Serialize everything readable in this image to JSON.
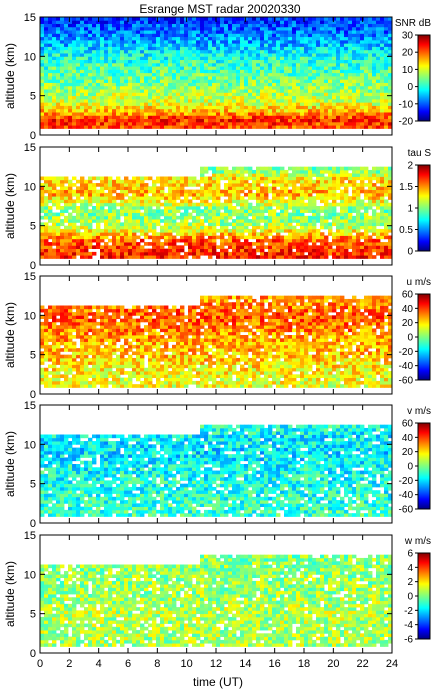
{
  "title": "Esrange MST radar 20020330",
  "xlabel": "time (UT)",
  "chart_data": [
    {
      "type": "heatmap",
      "ylabel": "altitude (km)",
      "x_range": [
        0,
        24
      ],
      "y_range": [
        0,
        15
      ],
      "x_ticks": [
        0,
        2,
        4,
        6,
        8,
        10,
        12,
        14,
        16,
        18,
        20,
        22,
        24
      ],
      "y_ticks": [
        0,
        5,
        10,
        15
      ],
      "colorbar": {
        "title": "SNR dB",
        "range": [
          -20,
          30
        ],
        "ticks": [
          30,
          20,
          10,
          0,
          -10,
          -20
        ]
      },
      "coverage": "full",
      "profile": [
        {
          "altitude": 1,
          "value": 20
        },
        {
          "altitude": 2,
          "value": 22
        },
        {
          "altitude": 3,
          "value": 15
        },
        {
          "altitude": 4,
          "value": 10
        },
        {
          "altitude": 6,
          "value": 6
        },
        {
          "altitude": 8,
          "value": 3
        },
        {
          "altitude": 10,
          "value": 0
        },
        {
          "altitude": 12,
          "value": -6
        },
        {
          "altitude": 14,
          "value": -10
        },
        {
          "altitude": 15,
          "value": -12
        }
      ]
    },
    {
      "type": "heatmap",
      "ylabel": "altitude (km)",
      "x_range": [
        0,
        24
      ],
      "y_range": [
        0,
        15
      ],
      "x_ticks": [
        0,
        2,
        4,
        6,
        8,
        10,
        12,
        14,
        16,
        18,
        20,
        22,
        24
      ],
      "y_ticks": [
        0,
        5,
        10,
        15
      ],
      "colorbar": {
        "title": "tau S",
        "range": [
          0,
          2
        ],
        "ticks": [
          2,
          1.5,
          1,
          0.5,
          0
        ]
      },
      "coverage": "gapped",
      "profile": [
        {
          "altitude": 1,
          "value": 1.7
        },
        {
          "altitude": 3,
          "value": 1.6
        },
        {
          "altitude": 5,
          "value": 1.1
        },
        {
          "altitude": 7,
          "value": 1.0
        },
        {
          "altitude": 9,
          "value": 1.4
        },
        {
          "altitude": 11,
          "value": 1.3
        },
        {
          "altitude": 12,
          "value": 1.0
        }
      ]
    },
    {
      "type": "heatmap",
      "ylabel": "altitude (km)",
      "x_range": [
        0,
        24
      ],
      "y_range": [
        0,
        15
      ],
      "x_ticks": [
        0,
        2,
        4,
        6,
        8,
        10,
        12,
        14,
        16,
        18,
        20,
        22,
        24
      ],
      "y_ticks": [
        0,
        5,
        10,
        15
      ],
      "colorbar": {
        "title": "u m/s",
        "range": [
          -60,
          60
        ],
        "ticks": [
          60,
          40,
          20,
          0,
          -20,
          -40,
          -60
        ]
      },
      "coverage": "gapped",
      "profile": [
        {
          "altitude": 1,
          "value": 12
        },
        {
          "altitude": 3,
          "value": 16
        },
        {
          "altitude": 5,
          "value": 22
        },
        {
          "altitude": 7,
          "value": 26
        },
        {
          "altitude": 9,
          "value": 32
        },
        {
          "altitude": 10,
          "value": 36
        },
        {
          "altitude": 12,
          "value": 26
        }
      ]
    },
    {
      "type": "heatmap",
      "ylabel": "altitude (km)",
      "x_range": [
        0,
        24
      ],
      "y_range": [
        0,
        15
      ],
      "x_ticks": [
        0,
        2,
        4,
        6,
        8,
        10,
        12,
        14,
        16,
        18,
        20,
        22,
        24
      ],
      "y_ticks": [
        0,
        5,
        10,
        15
      ],
      "colorbar": {
        "title": "v m/s",
        "range": [
          -60,
          60
        ],
        "ticks": [
          60,
          40,
          20,
          0,
          -20,
          -40,
          -60
        ]
      },
      "coverage": "gapped",
      "profile": [
        {
          "altitude": 1,
          "value": -8
        },
        {
          "altitude": 3,
          "value": -10
        },
        {
          "altitude": 5,
          "value": -12
        },
        {
          "altitude": 7,
          "value": -14
        },
        {
          "altitude": 9,
          "value": -18
        },
        {
          "altitude": 11,
          "value": -16
        },
        {
          "altitude": 12,
          "value": -12
        }
      ]
    },
    {
      "type": "heatmap",
      "ylabel": "altitude (km)",
      "x_range": [
        0,
        24
      ],
      "y_range": [
        0,
        15
      ],
      "x_ticks": [
        0,
        2,
        4,
        6,
        8,
        10,
        12,
        14,
        16,
        18,
        20,
        22,
        24
      ],
      "y_ticks": [
        0,
        5,
        10,
        15
      ],
      "colorbar": {
        "title": "w m/s",
        "range": [
          -6,
          6
        ],
        "ticks": [
          6,
          4,
          2,
          0,
          -2,
          -4,
          -6
        ]
      },
      "coverage": "gapped",
      "profile": [
        {
          "altitude": 1,
          "value": 0.5
        },
        {
          "altitude": 3,
          "value": 0.5
        },
        {
          "altitude": 5,
          "value": 0.6
        },
        {
          "altitude": 7,
          "value": 0.4
        },
        {
          "altitude": 9,
          "value": 0.3
        },
        {
          "altitude": 11,
          "value": 0.2
        },
        {
          "altitude": 12,
          "value": 0.1
        }
      ]
    }
  ]
}
